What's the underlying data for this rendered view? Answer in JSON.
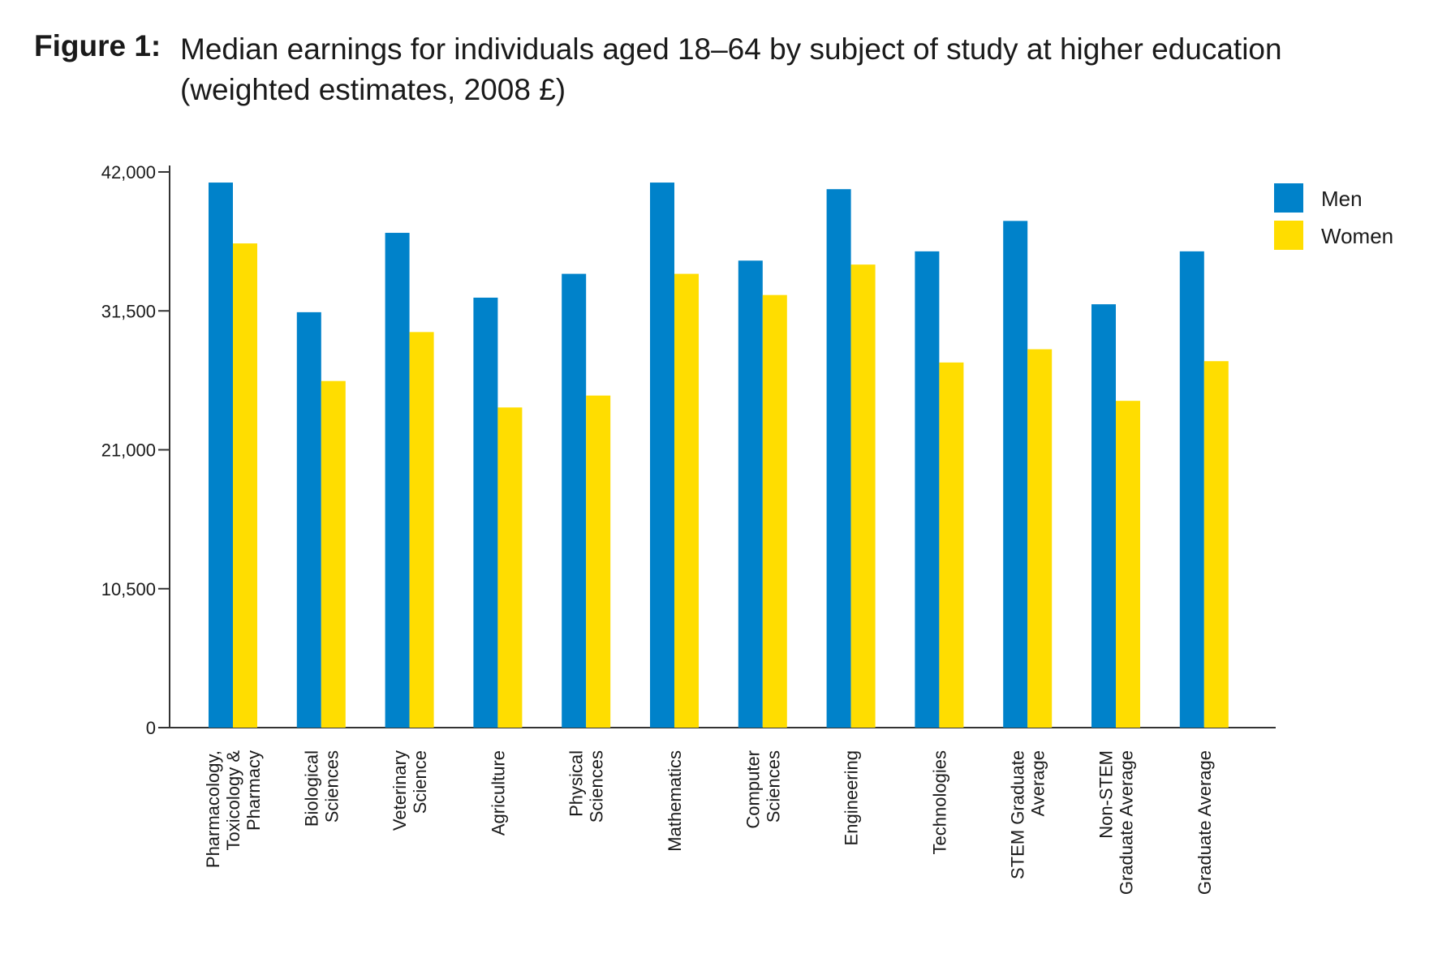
{
  "figure": {
    "label": "Figure 1:",
    "title": "Median earnings for individuals aged 18–64 by subject of study at higher education (weighted estimates, 2008 £)"
  },
  "colors": {
    "men": "#0082CA",
    "women": "#FFDD00",
    "axis": "#333333"
  },
  "chart_data": {
    "type": "bar",
    "title": "Median earnings for individuals aged 18–64 by subject of study at higher education (weighted estimates, 2008 £)",
    "xlabel": "",
    "ylabel": "",
    "ylim": [
      0,
      42000
    ],
    "yticks": [
      0,
      10500,
      21000,
      31500,
      42000
    ],
    "ytick_labels": [
      "0",
      "10,500",
      "21,000",
      "31,500",
      "42,000"
    ],
    "grid": false,
    "legend_position": "top-right",
    "categories": [
      "Pharmacology, Toxicology & Pharmacy",
      "Biological Sciences",
      "Veterinary Science",
      "Agriculture",
      "Physical Sciences",
      "Mathematics",
      "Computer Sciences",
      "Engineering",
      "Technologies",
      "STEM Graduate Average",
      "Non-STEM Graduate Average",
      "Graduate Average"
    ],
    "category_lines": [
      [
        "Pharmacology,",
        "Toxicology &",
        "Pharmacy"
      ],
      [
        "Biological",
        "Sciences"
      ],
      [
        "Veterinary",
        "Science"
      ],
      [
        "Agriculture"
      ],
      [
        "Physical",
        "Sciences"
      ],
      [
        "Mathematics"
      ],
      [
        "Computer",
        "Sciences"
      ],
      [
        "Engineering"
      ],
      [
        "Technologies"
      ],
      [
        "STEM Graduate",
        "Average"
      ],
      [
        "Non-STEM",
        "Graduate Average"
      ],
      [
        "Graduate Average"
      ]
    ],
    "series": [
      {
        "name": "Men",
        "values": [
          41200,
          31400,
          37400,
          32500,
          34300,
          41200,
          35300,
          40700,
          36000,
          38300,
          32000,
          36000
        ]
      },
      {
        "name": "Women",
        "values": [
          36600,
          26200,
          29900,
          24200,
          25100,
          34300,
          32700,
          35000,
          27600,
          28600,
          24700,
          27700
        ]
      }
    ]
  }
}
